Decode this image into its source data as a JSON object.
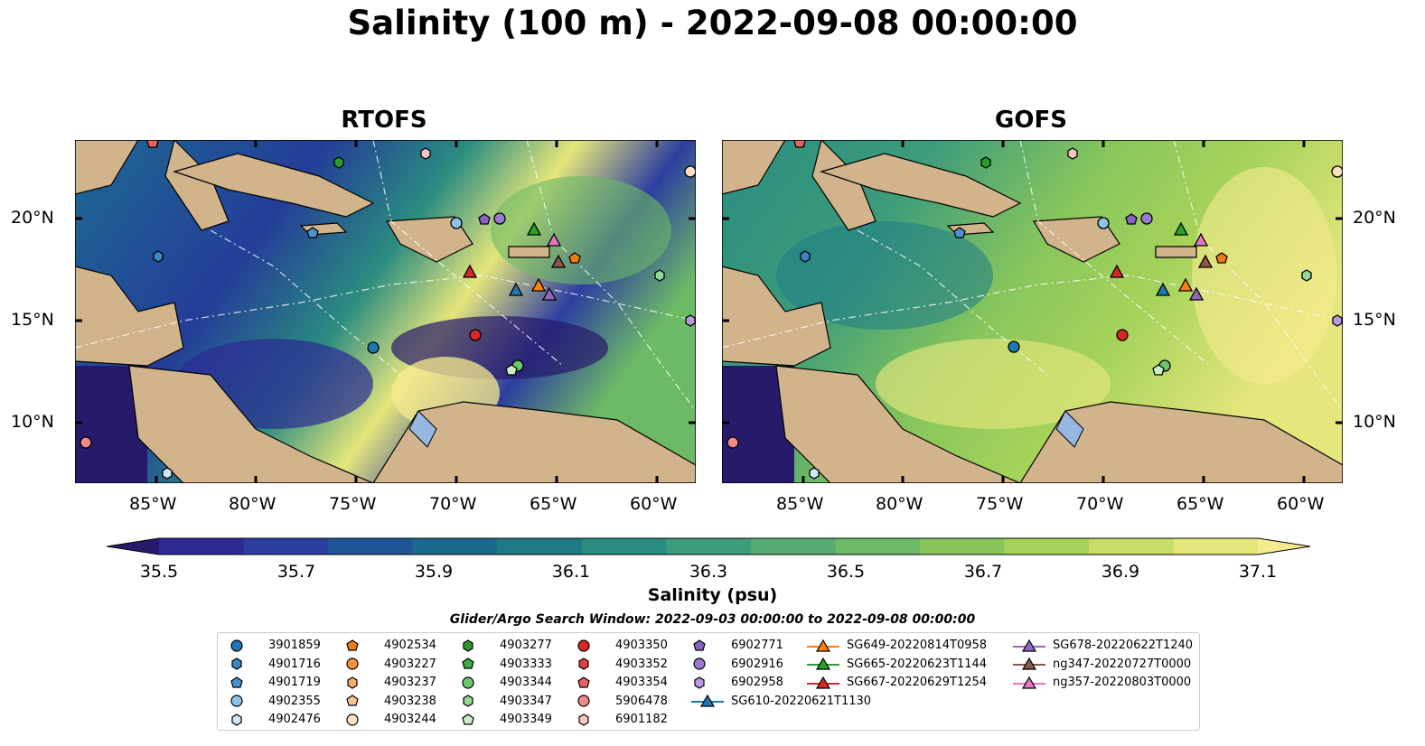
{
  "title": "Salinity (100 m) - 2022-09-08 00:00:00",
  "panels": [
    {
      "name": "RTOFS"
    },
    {
      "name": "GOFS"
    }
  ],
  "lat_ticks": [
    "20°N",
    "15°N",
    "10°N"
  ],
  "lon_ticks": [
    "85°W",
    "80°W",
    "75°W",
    "70°W",
    "65°W",
    "60°W"
  ],
  "colorbar": {
    "label": "Salinity (psu)",
    "min": 35.5,
    "max": 37.1,
    "ticks": [
      "35.5",
      "35.7",
      "35.9",
      "36.1",
      "36.3",
      "36.5",
      "36.7",
      "36.9",
      "37.1"
    ],
    "colors": [
      "#271a6b",
      "#2b2a94",
      "#2c3ea0",
      "#1f5598",
      "#1b6a8e",
      "#1e7b86",
      "#2a8c80",
      "#3d9c7a",
      "#55ab70",
      "#6cba66",
      "#88c65c",
      "#a6d35a",
      "#c6de68",
      "#e5e67c",
      "#f7eb8f"
    ]
  },
  "legend": {
    "title": "Glider/Argo Search Window: 2022-09-03 00:00:00 to 2022-09-08 00:00:00",
    "items": [
      {
        "label": "3901859",
        "marker": "circle",
        "color": "#1f77b4"
      },
      {
        "label": "4901716",
        "marker": "hexagon",
        "color": "#3b87c2"
      },
      {
        "label": "4901719",
        "marker": "pentagon",
        "color": "#4a92cc"
      },
      {
        "label": "4902355",
        "marker": "circle",
        "color": "#8ec3e8"
      },
      {
        "label": "4902476",
        "marker": "hexagon",
        "color": "#cfe7f7"
      },
      {
        "label": "4902534",
        "marker": "pentagon",
        "color": "#ef7c12"
      },
      {
        "label": "4903227",
        "marker": "circle",
        "color": "#f5923a"
      },
      {
        "label": "4903237",
        "marker": "hexagon",
        "color": "#f8ad6e"
      },
      {
        "label": "4903238",
        "marker": "pentagon",
        "color": "#fbc593"
      },
      {
        "label": "4903244",
        "marker": "circle",
        "color": "#fde0c2"
      },
      {
        "label": "4903277",
        "marker": "hexagon",
        "color": "#2a9a2a"
      },
      {
        "label": "4903333",
        "marker": "pentagon",
        "color": "#3fae3f"
      },
      {
        "label": "4903344",
        "marker": "circle",
        "color": "#6cc86c"
      },
      {
        "label": "4903347",
        "marker": "hexagon",
        "color": "#93d893"
      },
      {
        "label": "4903349",
        "marker": "pentagon",
        "color": "#c9efc4"
      },
      {
        "label": "4903350",
        "marker": "circle",
        "color": "#d62728"
      },
      {
        "label": "4903352",
        "marker": "hexagon",
        "color": "#e04141"
      },
      {
        "label": "4903354",
        "marker": "pentagon",
        "color": "#e96262"
      },
      {
        "label": "5906478",
        "marker": "circle",
        "color": "#f08a85"
      },
      {
        "label": "6901182",
        "marker": "hexagon",
        "color": "#f9c6c4"
      },
      {
        "label": "6902771",
        "marker": "pentagon",
        "color": "#8a63c2"
      },
      {
        "label": "6902916",
        "marker": "circle",
        "color": "#9b7bcf"
      },
      {
        "label": "6902958",
        "marker": "hexagon",
        "color": "#b99ae0"
      },
      {
        "label": "SG610-20220621T1130",
        "marker": "triangle-line",
        "color": "#1f77b4"
      },
      {
        "label": "SG649-20220814T0958",
        "marker": "triangle-line",
        "color": "#ff7f0e"
      },
      {
        "label": "SG665-20220623T1144",
        "marker": "triangle-line",
        "color": "#2ca02c"
      },
      {
        "label": "SG667-20220629T1254",
        "marker": "triangle-line",
        "color": "#d62728"
      },
      {
        "label": "SG678-20220622T1240",
        "marker": "triangle-line",
        "color": "#9467bd"
      },
      {
        "label": "ng347-20220727T0000",
        "marker": "triangle-line",
        "color": "#8c564b"
      },
      {
        "label": "ng357-20220803T0000",
        "marker": "triangle-line",
        "color": "#e377c2"
      }
    ]
  },
  "map_colors": {
    "land": "#d2b48c",
    "shallow_water": "#96b7e2",
    "rtofs_background": "#1e6b93",
    "gofs_background": "#5cb36b"
  }
}
